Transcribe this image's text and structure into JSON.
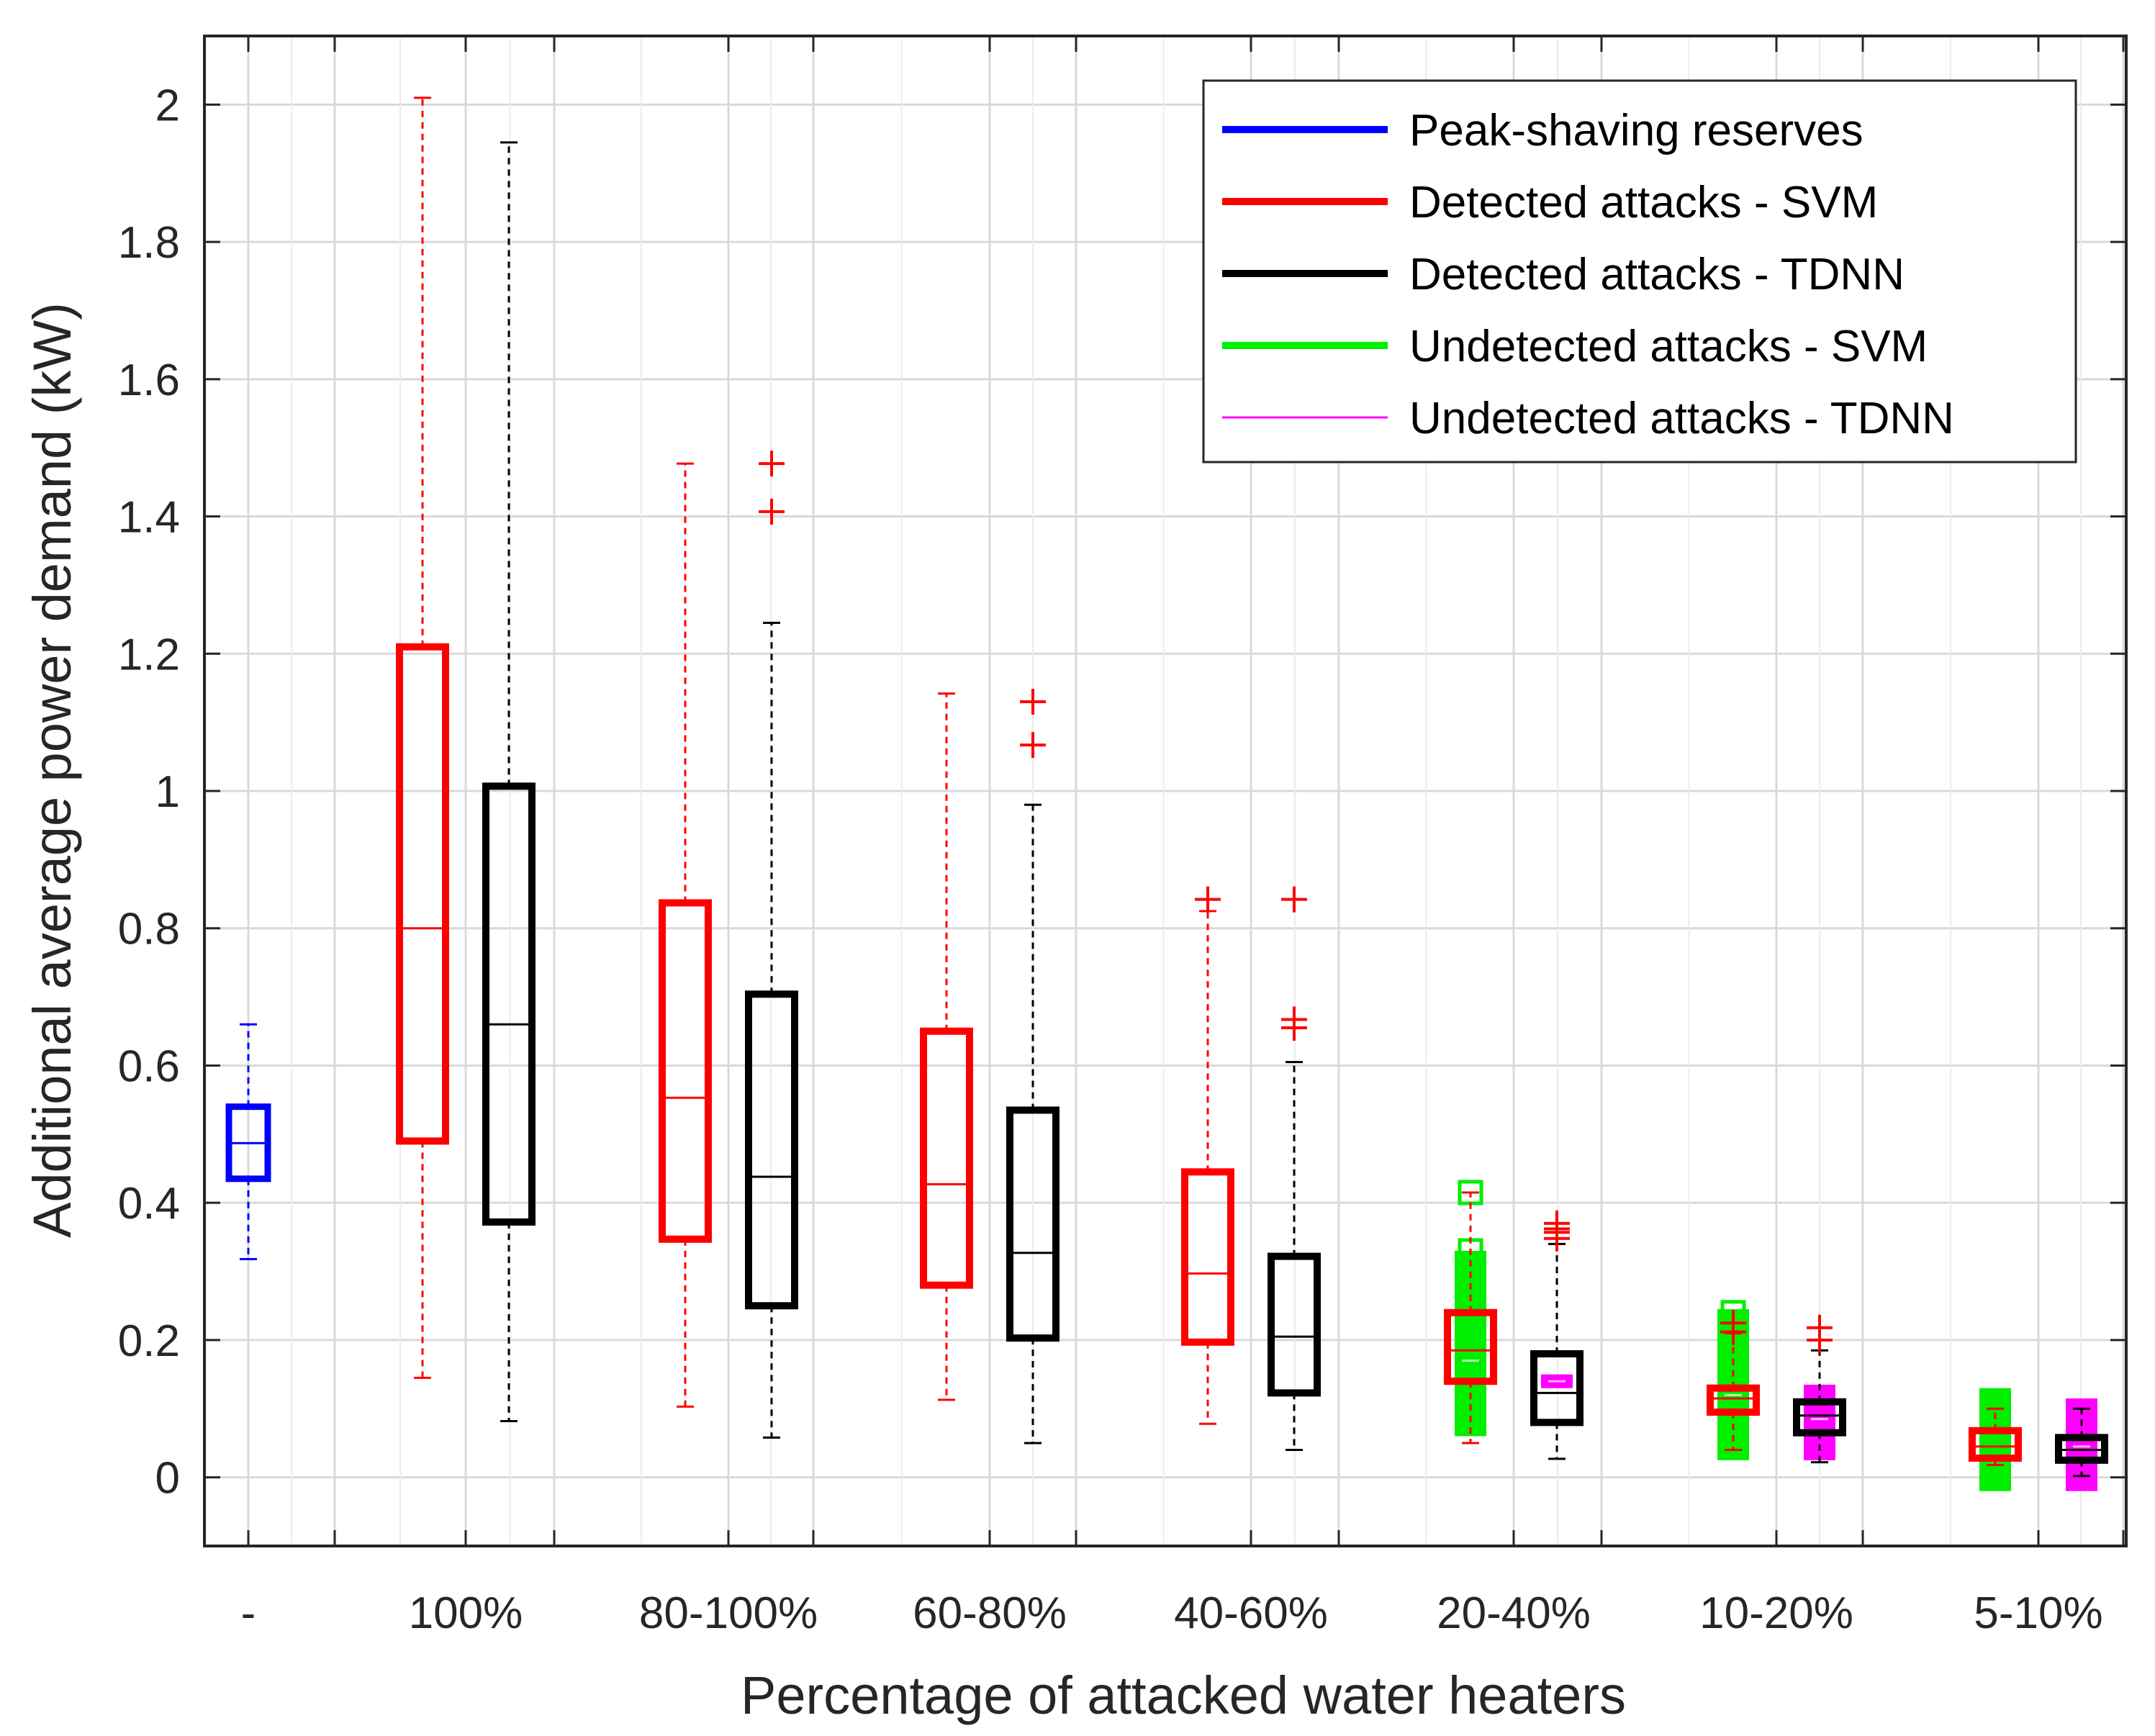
{
  "chart_data": {
    "type": "boxplot",
    "xlabel": "Percentage of attacked water heaters",
    "ylabel": "Additional average power demand (kW)",
    "ylim": [
      -0.1,
      2.1
    ],
    "yticks": [
      0,
      0.2,
      0.4,
      0.6,
      0.8,
      1,
      1.2,
      1.4,
      1.6,
      1.8,
      2
    ],
    "ytick_labels": [
      "0",
      "0.2",
      "0.4",
      "0.6",
      "0.8",
      "1",
      "1.2",
      "1.4",
      "1.6",
      "1.8",
      "2"
    ],
    "categories": [
      "-",
      "100%",
      "80-100%",
      "60-80%",
      "40-60%",
      "20-40%",
      "10-20%",
      "5-10%"
    ],
    "grid": true,
    "legend_position": "top-right",
    "series": [
      {
        "name": "Peak-shaving reserves",
        "color": "#0000ff",
        "legend_line": "thick"
      },
      {
        "name": "Detected attacks - SVM",
        "color": "#ff0000",
        "legend_line": "thick"
      },
      {
        "name": "Detected attacks - TDNN",
        "color": "#000000",
        "legend_line": "thick"
      },
      {
        "name": "Undetected attacks - SVM",
        "color": "#00ee00",
        "legend_line": "thick"
      },
      {
        "name": "Undetected attacks - TDNN",
        "color": "#ff00ff",
        "legend_line": "thin"
      }
    ],
    "boxes": [
      {
        "series": "Peak-shaving reserves",
        "group": "-",
        "q1": 0.435,
        "median": 0.487,
        "q3": 0.54,
        "whisker_low": 0.318,
        "whisker_high": 0.66,
        "outliers": []
      },
      {
        "series": "Detected attacks - SVM",
        "group": "100%",
        "q1": 0.49,
        "median": 0.8,
        "q3": 1.21,
        "whisker_low": 0.145,
        "whisker_high": 2.01,
        "outliers": []
      },
      {
        "series": "Detected attacks - TDNN",
        "group": "100%",
        "q1": 0.372,
        "median": 0.66,
        "q3": 1.007,
        "whisker_low": 0.082,
        "whisker_high": 1.945,
        "outliers": []
      },
      {
        "series": "Detected attacks - SVM",
        "group": "80-100%",
        "q1": 0.347,
        "median": 0.553,
        "q3": 0.837,
        "whisker_low": 0.103,
        "whisker_high": 1.477,
        "outliers": []
      },
      {
        "series": "Detected attacks - TDNN",
        "group": "80-100%",
        "q1": 0.25,
        "median": 0.438,
        "q3": 0.704,
        "whisker_low": 0.058,
        "whisker_high": 1.245,
        "outliers": [
          1.407,
          1.477
        ]
      },
      {
        "series": "Detected attacks - SVM",
        "group": "60-80%",
        "q1": 0.28,
        "median": 0.427,
        "q3": 0.65,
        "whisker_low": 0.113,
        "whisker_high": 1.142,
        "outliers": []
      },
      {
        "series": "Detected attacks - TDNN",
        "group": "60-80%",
        "q1": 0.203,
        "median": 0.327,
        "q3": 0.535,
        "whisker_low": 0.05,
        "whisker_high": 0.98,
        "outliers": [
          1.067,
          1.13
        ]
      },
      {
        "series": "Detected attacks - SVM",
        "group": "40-60%",
        "q1": 0.197,
        "median": 0.297,
        "q3": 0.445,
        "whisker_low": 0.078,
        "whisker_high": 0.825,
        "outliers": [
          0.842
        ]
      },
      {
        "series": "Detected attacks - TDNN",
        "group": "40-60%",
        "q1": 0.123,
        "median": 0.205,
        "q3": 0.322,
        "whisker_low": 0.04,
        "whisker_high": 0.605,
        "outliers": [
          0.655,
          0.667,
          0.842
        ]
      },
      {
        "series": "Undetected attacks - SVM",
        "group": "20-40%",
        "q1": 0.06,
        "median": 0.17,
        "q3": 0.33,
        "whisker_low": 0.05,
        "whisker_high": 0.42,
        "outliers": [
          0.415,
          0.33,
          0.29
        ]
      },
      {
        "series": "Detected attacks - SVM",
        "group": "20-40%",
        "q1": 0.14,
        "median": 0.185,
        "q3": 0.24,
        "whisker_low": 0.05,
        "whisker_high": 0.415,
        "outliers": []
      },
      {
        "series": "Undetected attacks - TDNN",
        "group": "20-40%",
        "q1": 0.13,
        "median": 0.14,
        "q3": 0.15,
        "whisker_low": 0.13,
        "whisker_high": 0.15,
        "outliers": []
      },
      {
        "series": "Detected attacks - TDNN",
        "group": "20-40%",
        "q1": 0.08,
        "median": 0.123,
        "q3": 0.18,
        "whisker_low": 0.027,
        "whisker_high": 0.34,
        "outliers": [
          0.348,
          0.357,
          0.362,
          0.37
        ]
      },
      {
        "series": "Undetected attacks - SVM",
        "group": "10-20%",
        "q1": 0.025,
        "median": 0.12,
        "q3": 0.245,
        "whisker_low": 0.025,
        "whisker_high": 0.245,
        "outliers": [
          0.24
        ]
      },
      {
        "series": "Detected attacks - SVM",
        "group": "10-20%",
        "q1": 0.095,
        "median": 0.115,
        "q3": 0.13,
        "whisker_low": 0.04,
        "whisker_high": 0.21,
        "outliers": [
          0.212,
          0.225
        ]
      },
      {
        "series": "Undetected attacks - TDNN",
        "group": "10-20%",
        "q1": 0.025,
        "median": 0.085,
        "q3": 0.135,
        "whisker_low": 0.025,
        "whisker_high": 0.135,
        "outliers": []
      },
      {
        "series": "Detected attacks - TDNN",
        "group": "10-20%",
        "q1": 0.065,
        "median": 0.09,
        "q3": 0.11,
        "whisker_low": 0.022,
        "whisker_high": 0.185,
        "outliers": [
          0.2,
          0.218
        ]
      },
      {
        "series": "Undetected attacks - SVM",
        "group": "5-10%",
        "q1": -0.02,
        "median": 0.045,
        "q3": 0.13,
        "whisker_low": -0.02,
        "whisker_high": 0.13,
        "outliers": []
      },
      {
        "series": "Detected attacks - SVM",
        "group": "5-10%",
        "q1": 0.028,
        "median": 0.045,
        "q3": 0.068,
        "whisker_low": 0.018,
        "whisker_high": 0.1,
        "outliers": []
      },
      {
        "series": "Undetected attacks - TDNN",
        "group": "5-10%",
        "q1": -0.02,
        "median": 0.045,
        "q3": 0.115,
        "whisker_low": -0.02,
        "whisker_high": 0.115,
        "outliers": []
      },
      {
        "series": "Detected attacks - TDNN",
        "group": "5-10%",
        "q1": 0.025,
        "median": 0.04,
        "q3": 0.058,
        "whisker_low": 0.002,
        "whisker_high": 0.1,
        "outliers": []
      }
    ]
  }
}
